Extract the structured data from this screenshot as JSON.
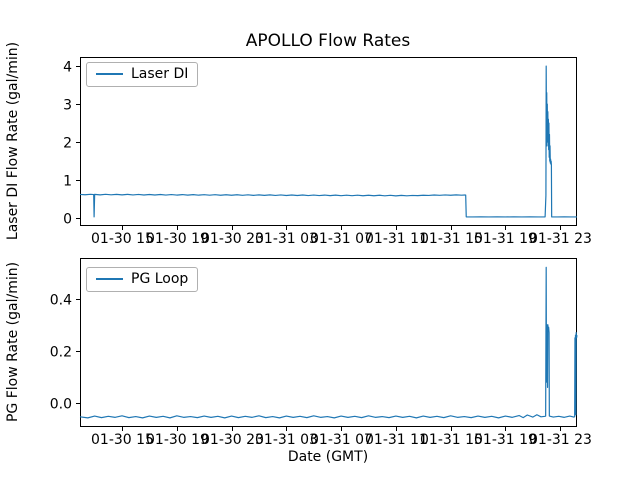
{
  "figure": {
    "title": "APOLLO Flow Rates",
    "xlabel": "Date (GMT)",
    "background": "#ffffff",
    "spine_color": "#000000",
    "line_color": "#1f77b4"
  },
  "chart_data": [
    {
      "type": "line",
      "title": "APOLLO Flow Rates",
      "ylabel": "Laser DI Flow Rate (gal/min)",
      "xlabel": "",
      "grid": false,
      "legend": {
        "label": "Laser DI",
        "position": "upper left"
      },
      "x_unit": "hours since 01-30 00:00 GMT",
      "xlim": [
        11.93,
        48.23
      ],
      "ylim": [
        -0.21,
        4.24
      ],
      "xticks": [
        15,
        19,
        23,
        27,
        31,
        35,
        39,
        43,
        47
      ],
      "xtick_labels": [
        "01-30 15",
        "01-30 19",
        "01-30 23",
        "01-31 03",
        "01-31 07",
        "01-31 11",
        "01-31 15",
        "01-31 19",
        "01-31 23"
      ],
      "yticks": [
        0,
        1,
        2,
        3,
        4
      ],
      "ytick_labels": [
        "0",
        "1",
        "2",
        "3",
        "4"
      ],
      "series": [
        {
          "name": "Laser DI",
          "color": "#1f77b4",
          "points": [
            [
              11.93,
              0.621
            ],
            [
              12.3,
              0.612
            ],
            [
              12.7,
              0.625
            ],
            [
              12.93,
              0.618
            ],
            [
              12.96,
              0.03
            ],
            [
              13.0,
              0.622
            ],
            [
              13.4,
              0.61
            ],
            [
              13.8,
              0.624
            ],
            [
              14.2,
              0.611
            ],
            [
              14.6,
              0.623
            ],
            [
              15.0,
              0.609
            ],
            [
              15.4,
              0.622
            ],
            [
              15.8,
              0.608
            ],
            [
              16.2,
              0.621
            ],
            [
              16.6,
              0.607
            ],
            [
              17.0,
              0.62
            ],
            [
              17.4,
              0.606
            ],
            [
              17.8,
              0.619
            ],
            [
              18.2,
              0.605
            ],
            [
              18.6,
              0.618
            ],
            [
              19.0,
              0.604
            ],
            [
              19.4,
              0.617
            ],
            [
              19.8,
              0.603
            ],
            [
              20.2,
              0.616
            ],
            [
              20.6,
              0.602
            ],
            [
              21.0,
              0.615
            ],
            [
              21.4,
              0.601
            ],
            [
              21.8,
              0.614
            ],
            [
              22.2,
              0.6
            ],
            [
              22.6,
              0.613
            ],
            [
              23.0,
              0.599
            ],
            [
              23.4,
              0.612
            ],
            [
              23.8,
              0.598
            ],
            [
              24.2,
              0.611
            ],
            [
              24.6,
              0.597
            ],
            [
              25.0,
              0.61
            ],
            [
              25.4,
              0.596
            ],
            [
              25.8,
              0.609
            ],
            [
              26.2,
              0.595
            ],
            [
              26.6,
              0.608
            ],
            [
              27.0,
              0.594
            ],
            [
              27.4,
              0.607
            ],
            [
              27.8,
              0.593
            ],
            [
              28.2,
              0.606
            ],
            [
              28.6,
              0.592
            ],
            [
              29.0,
              0.605
            ],
            [
              29.4,
              0.591
            ],
            [
              29.8,
              0.604
            ],
            [
              30.2,
              0.59
            ],
            [
              30.6,
              0.603
            ],
            [
              31.0,
              0.589
            ],
            [
              31.4,
              0.602
            ],
            [
              31.8,
              0.588
            ],
            [
              32.2,
              0.601
            ],
            [
              32.6,
              0.587
            ],
            [
              33.0,
              0.6
            ],
            [
              33.4,
              0.586
            ],
            [
              33.8,
              0.599
            ],
            [
              34.2,
              0.585
            ],
            [
              34.6,
              0.598
            ],
            [
              35.0,
              0.584
            ],
            [
              35.4,
              0.597
            ],
            [
              35.8,
              0.585
            ],
            [
              36.2,
              0.595
            ],
            [
              36.6,
              0.59
            ],
            [
              37.0,
              0.6
            ],
            [
              37.4,
              0.595
            ],
            [
              37.8,
              0.606
            ],
            [
              38.2,
              0.598
            ],
            [
              38.6,
              0.608
            ],
            [
              39.0,
              0.6
            ],
            [
              39.4,
              0.609
            ],
            [
              39.8,
              0.601
            ],
            [
              40.05,
              0.607
            ],
            [
              40.1,
              0.604
            ],
            [
              40.14,
              0.03
            ],
            [
              40.6,
              0.028
            ],
            [
              41.2,
              0.031
            ],
            [
              41.8,
              0.028
            ],
            [
              42.4,
              0.03
            ],
            [
              43.0,
              0.028
            ],
            [
              43.6,
              0.031
            ],
            [
              44.2,
              0.028
            ],
            [
              44.8,
              0.03
            ],
            [
              45.4,
              0.028
            ],
            [
              45.9,
              0.03
            ],
            [
              45.96,
              0.6
            ],
            [
              45.98,
              4.0
            ],
            [
              46.0,
              2.4
            ],
            [
              46.02,
              3.3
            ],
            [
              46.04,
              1.9
            ],
            [
              46.06,
              3.0
            ],
            [
              46.08,
              2.2
            ],
            [
              46.1,
              2.8
            ],
            [
              46.12,
              2.0
            ],
            [
              46.14,
              2.6
            ],
            [
              46.16,
              1.8
            ],
            [
              46.18,
              2.5
            ],
            [
              46.2,
              1.6
            ],
            [
              46.22,
              2.2
            ],
            [
              46.24,
              1.5
            ],
            [
              46.26,
              1.9
            ],
            [
              46.28,
              1.45
            ],
            [
              46.3,
              1.55
            ],
            [
              46.32,
              1.42
            ],
            [
              46.34,
              1.5
            ],
            [
              46.36,
              1.4
            ],
            [
              46.38,
              0.03
            ],
            [
              46.8,
              0.028
            ],
            [
              47.3,
              0.03
            ],
            [
              47.8,
              0.028
            ],
            [
              48.23,
              0.029
            ]
          ]
        }
      ]
    },
    {
      "type": "line",
      "title": "",
      "ylabel": "PG Flow Rate (gal/min)",
      "xlabel": "Date (GMT)",
      "grid": false,
      "legend": {
        "label": "PG Loop",
        "position": "upper left"
      },
      "x_unit": "hours since 01-30 00:00 GMT",
      "xlim": [
        11.93,
        48.23
      ],
      "ylim": [
        -0.092,
        0.556
      ],
      "xticks": [
        15,
        19,
        23,
        27,
        31,
        35,
        39,
        43,
        47
      ],
      "xtick_labels": [
        "01-30 15",
        "01-30 19",
        "01-30 23",
        "01-31 03",
        "01-31 07",
        "01-31 11",
        "01-31 15",
        "01-31 19",
        "01-31 23"
      ],
      "yticks": [
        0.0,
        0.2,
        0.4
      ],
      "ytick_labels": [
        "0.0",
        "0.2",
        "0.4"
      ],
      "series": [
        {
          "name": "PG Loop",
          "color": "#1f77b4",
          "points": [
            [
              11.93,
              -0.053
            ],
            [
              12.5,
              -0.057
            ],
            [
              13.0,
              -0.05
            ],
            [
              13.5,
              -0.056
            ],
            [
              14.0,
              -0.051
            ],
            [
              14.5,
              -0.055
            ],
            [
              15.0,
              -0.049
            ],
            [
              15.5,
              -0.056
            ],
            [
              16.0,
              -0.052
            ],
            [
              16.5,
              -0.057
            ],
            [
              17.0,
              -0.05
            ],
            [
              17.5,
              -0.055
            ],
            [
              18.0,
              -0.051
            ],
            [
              18.5,
              -0.057
            ],
            [
              19.0,
              -0.049
            ],
            [
              19.5,
              -0.055
            ],
            [
              20.0,
              -0.052
            ],
            [
              20.5,
              -0.056
            ],
            [
              21.0,
              -0.05
            ],
            [
              21.5,
              -0.055
            ],
            [
              22.0,
              -0.051
            ],
            [
              22.5,
              -0.057
            ],
            [
              23.0,
              -0.05
            ],
            [
              23.5,
              -0.056
            ],
            [
              24.0,
              -0.051
            ],
            [
              24.5,
              -0.055
            ],
            [
              25.0,
              -0.049
            ],
            [
              25.5,
              -0.056
            ],
            [
              26.0,
              -0.052
            ],
            [
              26.5,
              -0.057
            ],
            [
              27.0,
              -0.05
            ],
            [
              27.5,
              -0.055
            ],
            [
              28.0,
              -0.051
            ],
            [
              28.5,
              -0.056
            ],
            [
              29.0,
              -0.049
            ],
            [
              29.5,
              -0.055
            ],
            [
              30.0,
              -0.052
            ],
            [
              30.5,
              -0.057
            ],
            [
              31.0,
              -0.05
            ],
            [
              31.5,
              -0.055
            ],
            [
              32.0,
              -0.051
            ],
            [
              32.5,
              -0.056
            ],
            [
              33.0,
              -0.049
            ],
            [
              33.5,
              -0.055
            ],
            [
              34.0,
              -0.052
            ],
            [
              34.5,
              -0.056
            ],
            [
              35.0,
              -0.05
            ],
            [
              35.5,
              -0.055
            ],
            [
              36.0,
              -0.051
            ],
            [
              36.5,
              -0.057
            ],
            [
              37.0,
              -0.05
            ],
            [
              37.5,
              -0.055
            ],
            [
              38.0,
              -0.051
            ],
            [
              38.5,
              -0.056
            ],
            [
              39.0,
              -0.049
            ],
            [
              39.5,
              -0.055
            ],
            [
              40.0,
              -0.052
            ],
            [
              40.5,
              -0.056
            ],
            [
              41.0,
              -0.05
            ],
            [
              41.5,
              -0.055
            ],
            [
              42.0,
              -0.051
            ],
            [
              42.5,
              -0.057
            ],
            [
              43.0,
              -0.05
            ],
            [
              43.5,
              -0.055
            ],
            [
              44.0,
              -0.048
            ],
            [
              44.3,
              -0.056
            ],
            [
              44.6,
              -0.046
            ],
            [
              45.0,
              -0.054
            ],
            [
              45.3,
              -0.045
            ],
            [
              45.6,
              -0.053
            ],
            [
              45.9,
              -0.051
            ],
            [
              45.94,
              -0.05
            ],
            [
              45.96,
              0.24
            ],
            [
              45.98,
              0.52
            ],
            [
              46.0,
              0.08
            ],
            [
              46.02,
              0.3
            ],
            [
              46.05,
              0.29
            ],
            [
              46.08,
              0.06
            ],
            [
              46.1,
              0.3
            ],
            [
              46.13,
              0.28
            ],
            [
              46.16,
              0.29
            ],
            [
              46.19,
              0.27
            ],
            [
              46.21,
              -0.05
            ],
            [
              46.5,
              -0.054
            ],
            [
              46.9,
              -0.051
            ],
            [
              47.3,
              -0.055
            ],
            [
              47.7,
              -0.05
            ],
            [
              48.0,
              -0.054
            ],
            [
              48.06,
              -0.052
            ],
            [
              48.08,
              0.25
            ],
            [
              48.1,
              -0.04
            ],
            [
              48.12,
              0.26
            ],
            [
              48.15,
              -0.045
            ],
            [
              48.17,
              0.27
            ],
            [
              48.2,
              0.25
            ],
            [
              48.23,
              0.26
            ]
          ]
        }
      ]
    }
  ]
}
